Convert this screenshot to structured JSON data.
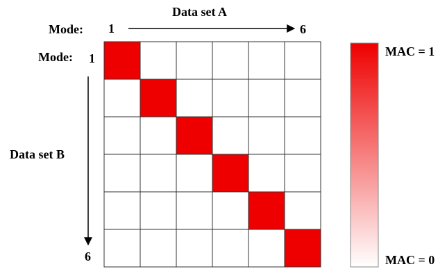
{
  "header": {
    "dataset_a_label": "Data set A",
    "mode_label_top": "Mode:",
    "mode_start_top": "1",
    "mode_end_top": "6"
  },
  "side": {
    "mode_label_left": "Mode:",
    "mode_start_left": "1",
    "dataset_b_label": "Data set B",
    "mode_end_left": "6"
  },
  "legend": {
    "max_label": "MAC = 1",
    "min_label": "MAC = 0",
    "max_color": "#ee0000",
    "min_color": "#ffffff"
  },
  "matrix": {
    "size": 6,
    "cell_fill_color": "#ee0000",
    "grid_color": "#333333",
    "values": [
      [
        1,
        0,
        0,
        0,
        0,
        0
      ],
      [
        0,
        1,
        0,
        0,
        0,
        0
      ],
      [
        0,
        0,
        1,
        0,
        0,
        0
      ],
      [
        0,
        0,
        0,
        1,
        0,
        0
      ],
      [
        0,
        0,
        0,
        0,
        1,
        0
      ],
      [
        0,
        0,
        0,
        0,
        0,
        1
      ]
    ]
  }
}
